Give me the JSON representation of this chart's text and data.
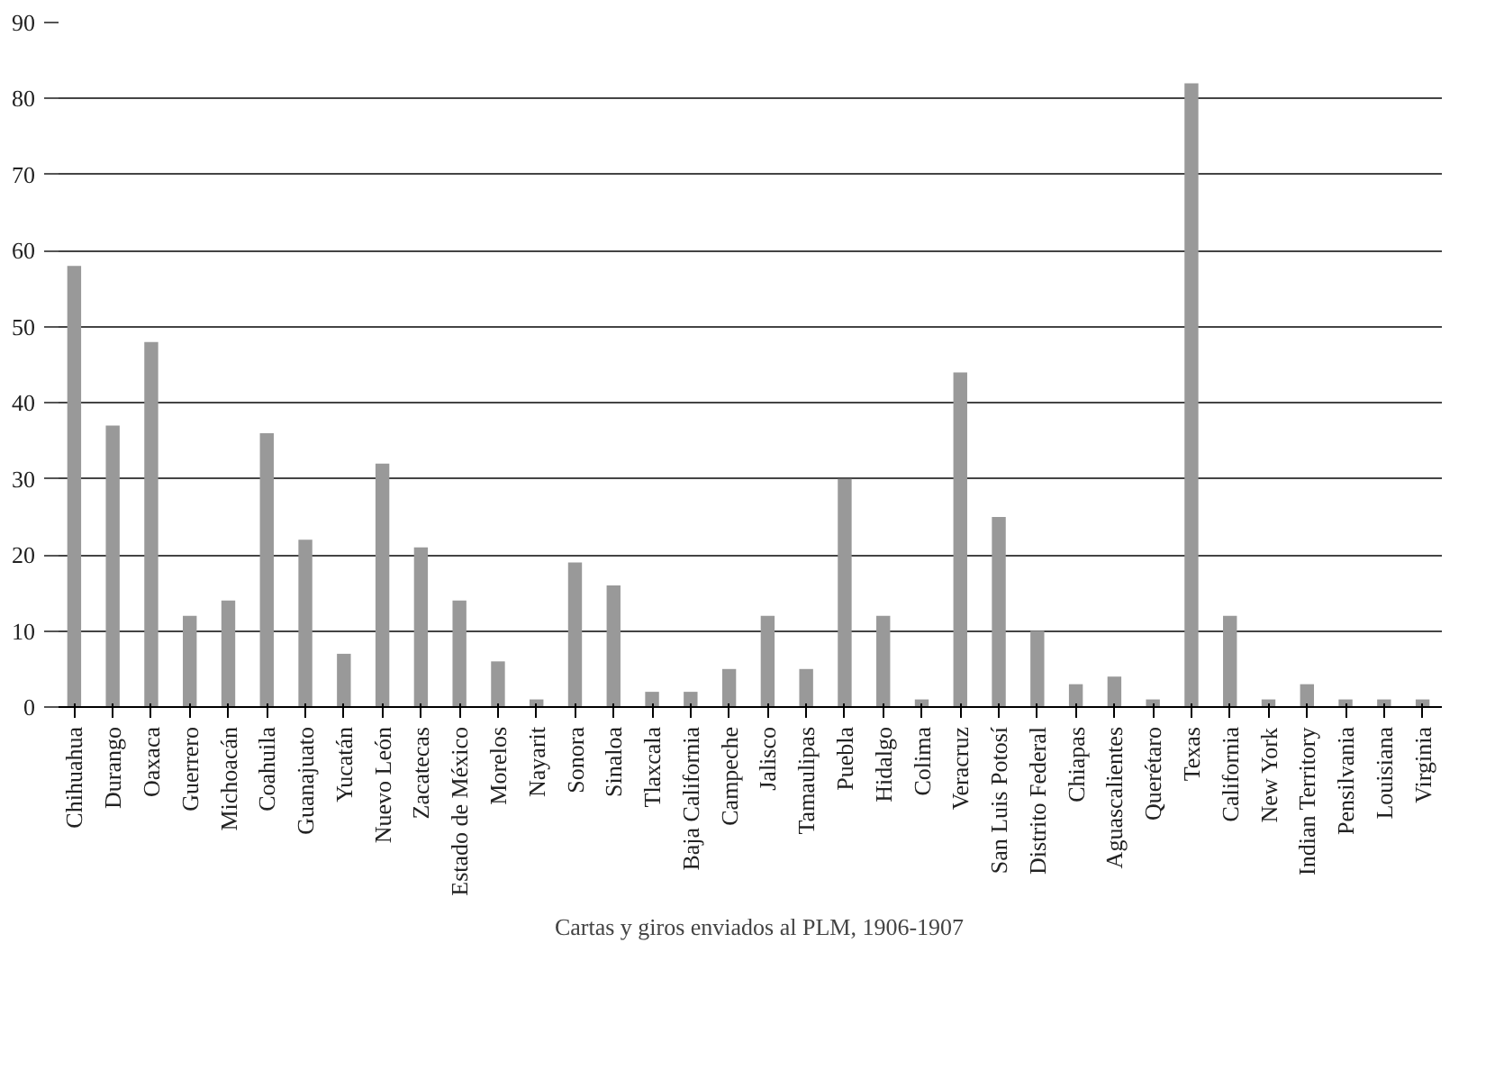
{
  "chart_data": {
    "type": "bar",
    "categories": [
      "Chihuahua",
      "Durango",
      "Oaxaca",
      "Guerrero",
      "Michoacán",
      "Coahuila",
      "Guanajuato",
      "Yucatán",
      "Nuevo León",
      "Zacatecas",
      "Estado de México",
      "Morelos",
      "Nayarit",
      "Sonora",
      "Sinaloa",
      "Tlaxcala",
      "Baja California",
      "Campeche",
      "Jalisco",
      "Tamaulipas",
      "Puebla",
      "Hidalgo",
      "Colima",
      "Veracruz",
      "San Luis Potosí",
      "Distrito Federal",
      "Chiapas",
      "Aguascalientes",
      "Querétaro",
      "Texas",
      "California",
      "New York",
      "Indian Territory",
      "Pensilvania",
      "Louisiana",
      "Virginia"
    ],
    "series": [
      {
        "name": "Cartas y giros enviados al PLM, 1906-1907",
        "color": "#999999",
        "values": [
          58,
          37,
          48,
          12,
          14,
          36,
          22,
          7,
          32,
          21,
          14,
          6,
          1,
          19,
          16,
          2,
          2,
          5,
          12,
          5,
          30,
          12,
          1,
          44,
          25,
          10,
          3,
          4,
          1,
          82,
          12,
          1,
          3,
          1,
          1,
          1
        ]
      }
    ],
    "ylim": [
      0,
      90
    ],
    "yticks": [
      0,
      10,
      20,
      30,
      40,
      50,
      60,
      70,
      80,
      90
    ],
    "grid": "y",
    "legend": "bottom"
  }
}
